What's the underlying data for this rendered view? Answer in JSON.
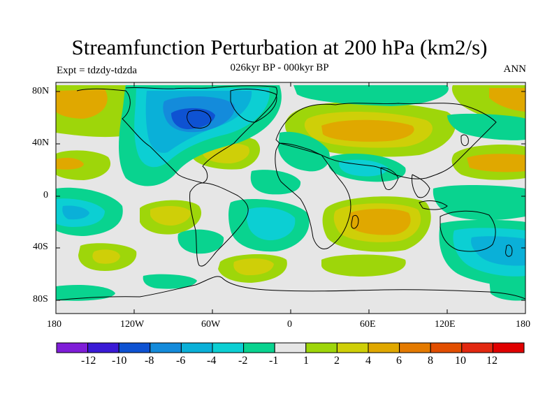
{
  "title": "Streamfunction Perturbation at 200 hPa (km2/s)",
  "subtitle": "026kyr BP - 000kyr BP",
  "left_label": "Expt = tdzdy-tdzda",
  "right_label": "ANN",
  "lat_labels": [
    "80N",
    "40N",
    "0",
    "40S",
    "80S"
  ],
  "lon_labels": [
    "180",
    "120W",
    "60W",
    "0",
    "60E",
    "120E",
    "180"
  ],
  "colorbar": {
    "labels": [
      "-12",
      "-10",
      "-8",
      "-6",
      "-4",
      "-2",
      "-1",
      "1",
      "2",
      "4",
      "6",
      "8",
      "10",
      "12"
    ],
    "colors": [
      "#7f1dd8",
      "#3a1ad6",
      "#0e52d2",
      "#148bdb",
      "#0ab0d8",
      "#0ccfd3",
      "#09d38f",
      "#e6e6e6",
      "#9ed60a",
      "#cfcf08",
      "#e0a800",
      "#e47a00",
      "#e24e00",
      "#e22810",
      "#e00000"
    ]
  },
  "colors": {
    "background": "#e6e6e6",
    "coast": "#000000"
  }
}
